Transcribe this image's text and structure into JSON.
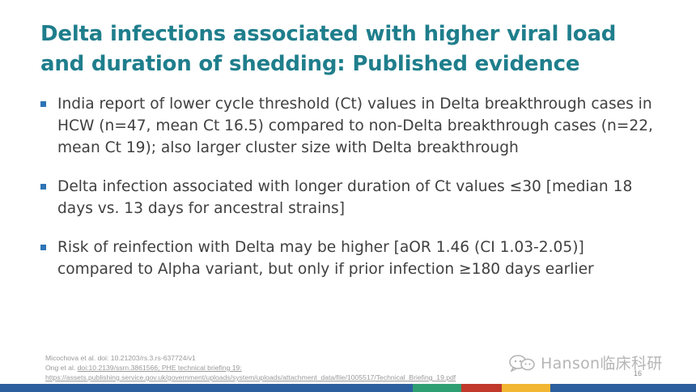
{
  "slide": {
    "title": "Delta infections associated with higher viral load and duration of shedding: Published evidence",
    "bullets": [
      "India report of lower cycle threshold (Ct) values in Delta breakthrough cases in HCW (n=47, mean Ct 16.5) compared to non-Delta breakthrough cases (n=22, mean Ct 19); also larger cluster size with Delta breakthrough",
      "Delta infection associated with longer duration of Ct values ≤30 [median 18 days vs. 13 days for ancestral strains]",
      "Risk of reinfection with Delta may be higher [aOR 1.46 (CI 1.03-2.05)] compared to Alpha variant, but only if prior infection ≥180 days earlier"
    ],
    "references": {
      "line1": "Micochova et al. doi: 10.21203/rs.3.rs-637724/v1",
      "line2_prefix": "Ong et al. ",
      "line2_link": "doi:10.2139/ssrn.3861566; PHE technical briefing 19:",
      "line3_link": "https://assets.publishing.service.gov.uk/government/uploads/system/uploads/attachment_data/file/1005517/Technical_Briefing_19.pdf"
    },
    "page_number": "16",
    "watermark": {
      "text": "Hanson临床科研",
      "icon": "wechat-icon"
    }
  },
  "colors": {
    "title": "#1f7e8c",
    "body_text": "#404040",
    "bullet": "#2e75b6",
    "footer_bar": [
      "#2c5f9e",
      "#2c5f9e",
      "#2e9e73",
      "#c0392b",
      "#f2b632",
      "#2c5f9e"
    ]
  }
}
